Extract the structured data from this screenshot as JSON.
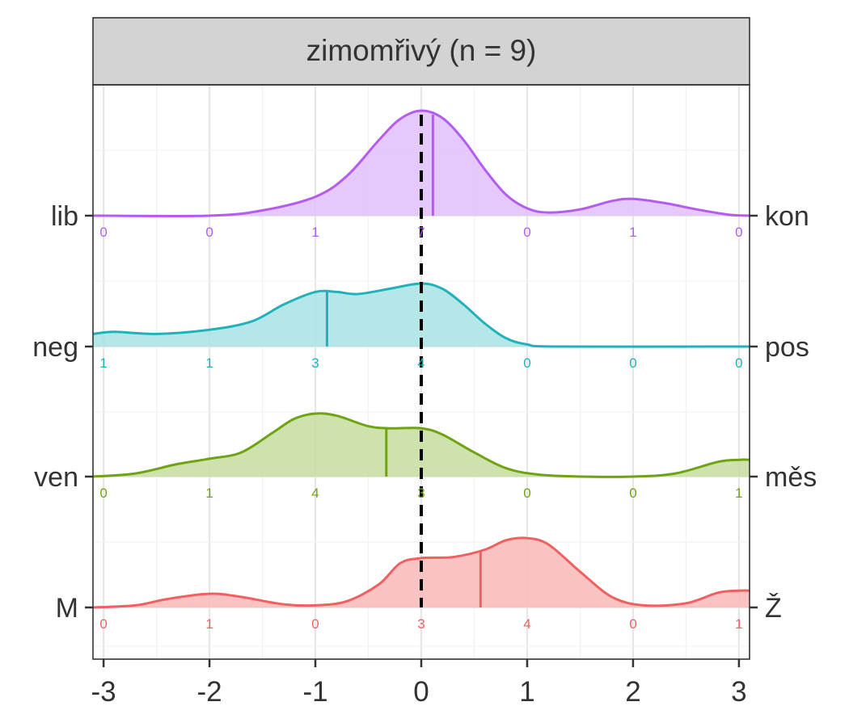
{
  "chart_data": {
    "type": "ridgeline",
    "title": "zimomřivý (n = 9)",
    "xlim": [
      -3.1,
      3.1
    ],
    "x_ticks": [
      -3,
      -2,
      -1,
      0,
      1,
      2,
      3
    ],
    "x_tick_labels": [
      "-3",
      "-2",
      "-1",
      "0",
      "1",
      "2",
      "3"
    ],
    "reference_line": 0,
    "grid": true,
    "count_positions": [
      -3,
      -2,
      -1,
      0,
      1,
      2,
      3
    ],
    "series": [
      {
        "left_label": "lib",
        "right_label": "kon",
        "color": "#B45CF0",
        "fill": "#E2C0FC",
        "mean": 0.11,
        "counts": [
          "0",
          "0",
          "1",
          "7",
          "0",
          "1",
          "0"
        ],
        "density": [
          [
            -3.1,
            0
          ],
          [
            -2.0,
            0.0
          ],
          [
            -1.5,
            0.05
          ],
          [
            -1.0,
            0.18
          ],
          [
            -0.7,
            0.38
          ],
          [
            -0.4,
            0.72
          ],
          [
            -0.2,
            0.92
          ],
          [
            0.0,
            1.0
          ],
          [
            0.2,
            0.93
          ],
          [
            0.4,
            0.72
          ],
          [
            0.6,
            0.44
          ],
          [
            0.8,
            0.2
          ],
          [
            1.0,
            0.07
          ],
          [
            1.2,
            0.03
          ],
          [
            1.5,
            0.06
          ],
          [
            1.8,
            0.14
          ],
          [
            2.0,
            0.16
          ],
          [
            2.3,
            0.12
          ],
          [
            2.6,
            0.06
          ],
          [
            2.9,
            0.01
          ],
          [
            3.1,
            0.0
          ]
        ]
      },
      {
        "left_label": "neg",
        "right_label": "pos",
        "color": "#20B2B8",
        "fill": "#A8E2E4",
        "mean": -0.89,
        "counts": [
          "1",
          "1",
          "3",
          "4",
          "0",
          "0",
          "0"
        ],
        "density": [
          [
            -3.1,
            0.12
          ],
          [
            -2.9,
            0.14
          ],
          [
            -2.5,
            0.12
          ],
          [
            -2.0,
            0.16
          ],
          [
            -1.6,
            0.24
          ],
          [
            -1.3,
            0.4
          ],
          [
            -1.0,
            0.52
          ],
          [
            -0.8,
            0.52
          ],
          [
            -0.6,
            0.5
          ],
          [
            -0.3,
            0.55
          ],
          [
            0.0,
            0.6
          ],
          [
            0.2,
            0.55
          ],
          [
            0.4,
            0.4
          ],
          [
            0.6,
            0.22
          ],
          [
            0.8,
            0.08
          ],
          [
            1.0,
            0.02
          ],
          [
            1.3,
            0.0
          ],
          [
            3.1,
            0.0
          ]
        ]
      },
      {
        "left_label": "ven",
        "right_label": "měs",
        "color": "#6FA312",
        "fill": "#C6DD9F",
        "mean": -0.33,
        "counts": [
          "0",
          "1",
          "4",
          "3",
          "0",
          "0",
          "1"
        ],
        "density": [
          [
            -3.1,
            0.0
          ],
          [
            -2.7,
            0.03
          ],
          [
            -2.3,
            0.12
          ],
          [
            -2.0,
            0.17
          ],
          [
            -1.7,
            0.23
          ],
          [
            -1.4,
            0.42
          ],
          [
            -1.2,
            0.55
          ],
          [
            -1.0,
            0.6
          ],
          [
            -0.8,
            0.58
          ],
          [
            -0.5,
            0.48
          ],
          [
            -0.3,
            0.46
          ],
          [
            0.0,
            0.46
          ],
          [
            0.2,
            0.4
          ],
          [
            0.5,
            0.23
          ],
          [
            0.8,
            0.08
          ],
          [
            1.1,
            0.02
          ],
          [
            1.5,
            0.0
          ],
          [
            2.0,
            0.0
          ],
          [
            2.4,
            0.03
          ],
          [
            2.8,
            0.14
          ],
          [
            3.0,
            0.16
          ],
          [
            3.1,
            0.16
          ]
        ]
      },
      {
        "left_label": "M",
        "right_label": "Ž",
        "color": "#F06060",
        "fill": "#F9B8B8",
        "mean": 0.56,
        "counts": [
          "0",
          "1",
          "0",
          "3",
          "4",
          "0",
          "1"
        ],
        "density": [
          [
            -3.1,
            0.0
          ],
          [
            -2.7,
            0.02
          ],
          [
            -2.4,
            0.08
          ],
          [
            -2.0,
            0.13
          ],
          [
            -1.7,
            0.1
          ],
          [
            -1.3,
            0.03
          ],
          [
            -1.0,
            0.02
          ],
          [
            -0.7,
            0.06
          ],
          [
            -0.4,
            0.22
          ],
          [
            -0.2,
            0.42
          ],
          [
            0.0,
            0.47
          ],
          [
            0.3,
            0.48
          ],
          [
            0.6,
            0.55
          ],
          [
            0.8,
            0.64
          ],
          [
            1.0,
            0.66
          ],
          [
            1.2,
            0.6
          ],
          [
            1.5,
            0.34
          ],
          [
            1.8,
            0.1
          ],
          [
            2.1,
            0.02
          ],
          [
            2.5,
            0.04
          ],
          [
            2.8,
            0.14
          ],
          [
            3.0,
            0.16
          ],
          [
            3.1,
            0.16
          ]
        ]
      }
    ]
  }
}
